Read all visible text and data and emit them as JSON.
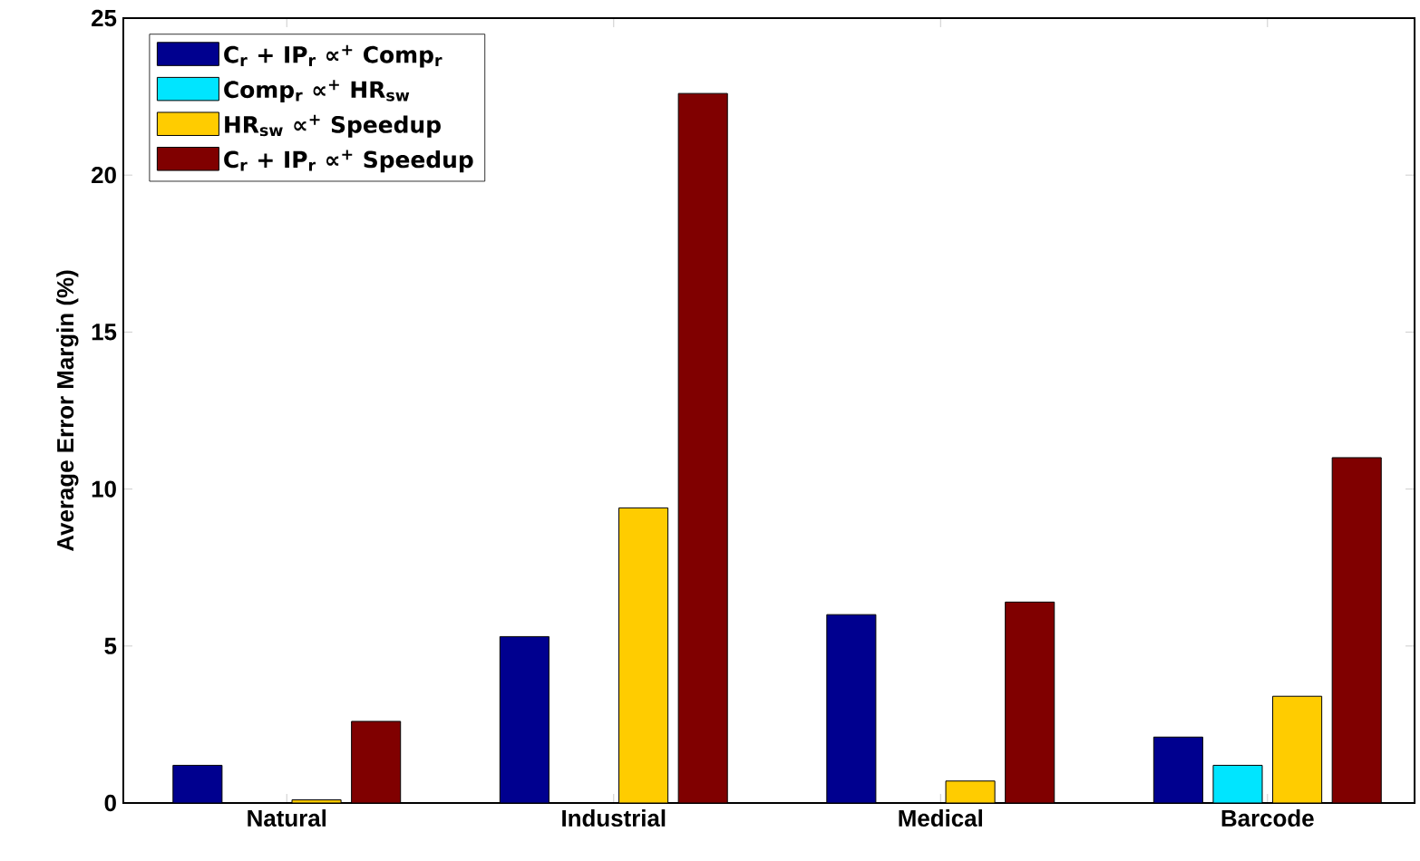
{
  "chart_data": {
    "type": "bar",
    "ylabel": "Average Error Margin (%)",
    "categories": [
      "Natural",
      "Industrial",
      "Medical",
      "Barcode"
    ],
    "series": [
      {
        "name": "C$_{r}$ + IP$_{r}$  ∝$^{+}$ Comp$_{r}$",
        "color": "#00008f",
        "values": [
          1.2,
          5.3,
          6.0,
          2.1
        ]
      },
      {
        "name": "Comp$_{r}$ ∝$^{+}$ HR$_{sw}$",
        "color": "#00e5ff",
        "values": [
          0,
          0,
          0,
          1.2
        ]
      },
      {
        "name": "HR$_{sw}$ ∝$^{+}$ Speedup",
        "color": "#ffcc00",
        "values": [
          0.1,
          9.4,
          0.7,
          3.4
        ]
      },
      {
        "name": "C$_{r}$ + IP$_{r}$ ∝$^{+}$ Speedup",
        "color": "#800000",
        "values": [
          2.6,
          22.6,
          6.4,
          11.0
        ]
      }
    ],
    "ylim": [
      0,
      25
    ],
    "yticks": [
      0,
      5,
      10,
      15,
      20,
      25
    ],
    "legend": "top left"
  }
}
